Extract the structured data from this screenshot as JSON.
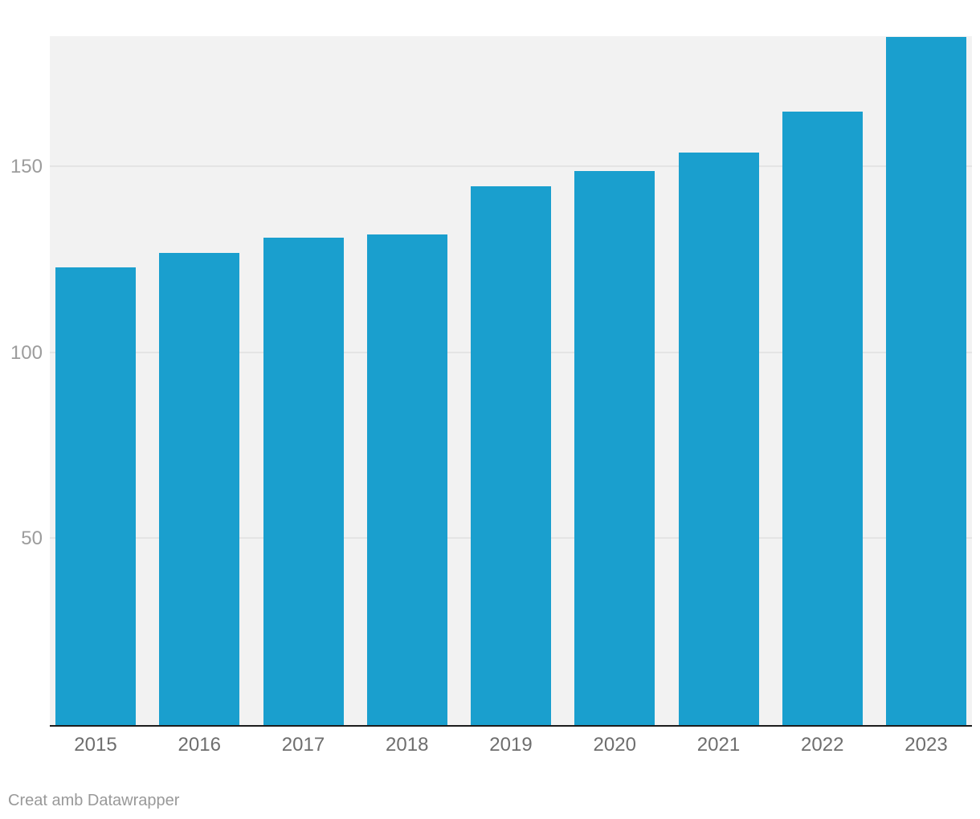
{
  "chart_data": {
    "type": "bar",
    "categories": [
      "2015",
      "2016",
      "2017",
      "2018",
      "2019",
      "2020",
      "2021",
      "2022",
      "2023"
    ],
    "values": [
      123,
      127,
      131,
      132,
      145,
      149,
      154,
      165,
      185
    ],
    "title": "",
    "xlabel": "",
    "ylabel": "",
    "yticks": [
      50,
      100,
      150
    ],
    "ylim": [
      0,
      185.3
    ],
    "grid": "horizontal",
    "legend": "none",
    "bar_color": "#1a9fce",
    "plot_background": "#f2f2f2",
    "gridline_color": "#e4e4e4",
    "axis_line_color": "#1c1c1c",
    "x_label_color": "#6e6e6e",
    "y_label_color": "#9c9c9c"
  },
  "footer": {
    "attribution": "Creat amb Datawrapper"
  }
}
